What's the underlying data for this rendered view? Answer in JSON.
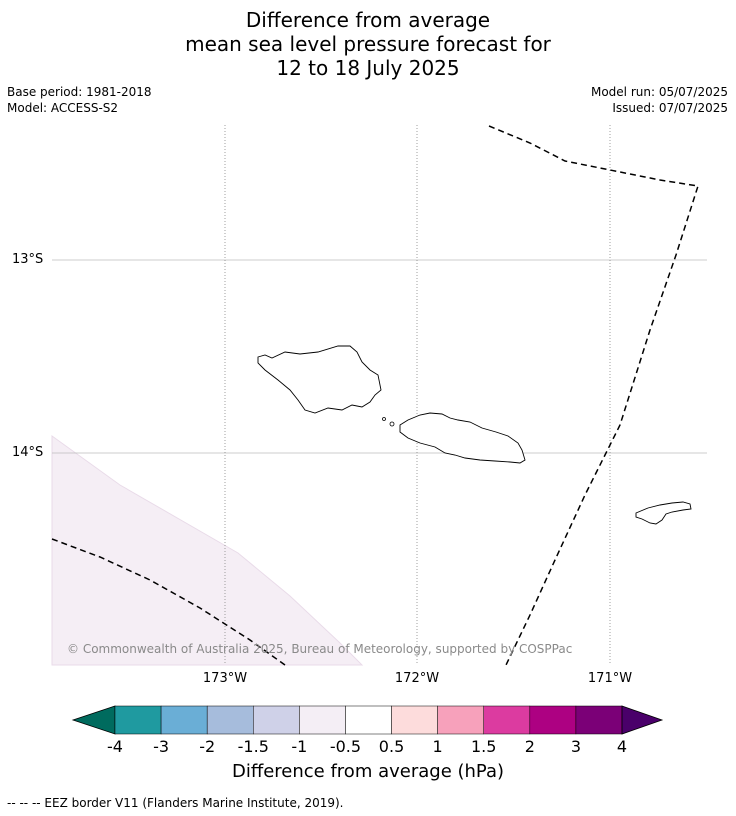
{
  "title": {
    "line1": "Difference from average",
    "line2": "mean sea level pressure forecast for",
    "line3": "12 to 18 July 2025"
  },
  "meta": {
    "base_period": "Base period: 1981-2018",
    "model": "Model: ACCESS-S2",
    "model_run": "Model run: 05/07/2025",
    "issued": "Issued: 07/07/2025"
  },
  "map": {
    "lat_labels": [
      "13°S",
      "14°S"
    ],
    "lon_labels": [
      "173°W",
      "172°W",
      "171°W"
    ],
    "copyright": "© Commonwealth of Australia 2025, Bureau of Meteorology, supported by COSPPac",
    "shaded_region_color": "#f5eef5",
    "shaded_region_value_range": "-1 to -0.5"
  },
  "colorbar": {
    "labels": [
      "-4",
      "-3",
      "-2",
      "-1.5",
      "-1",
      "-0.5",
      "0.5",
      "1",
      "1.5",
      "2",
      "3",
      "4"
    ],
    "colors": [
      "#0e7f7f",
      "#1f9aa0",
      "#6aaed6",
      "#a6bcdc",
      "#cfd1e8",
      "#f4eef5",
      "#ffffff",
      "#fddcdc",
      "#f7a1bb",
      "#dc3ba0",
      "#ad0182",
      "#7b0077"
    ],
    "under_color": "#006b5e",
    "over_color": "#4a006a",
    "title": "Difference from average (hPa)"
  },
  "footer": "--  --  -- EEZ border V11 (Flanders Marine Institute, 2019)."
}
